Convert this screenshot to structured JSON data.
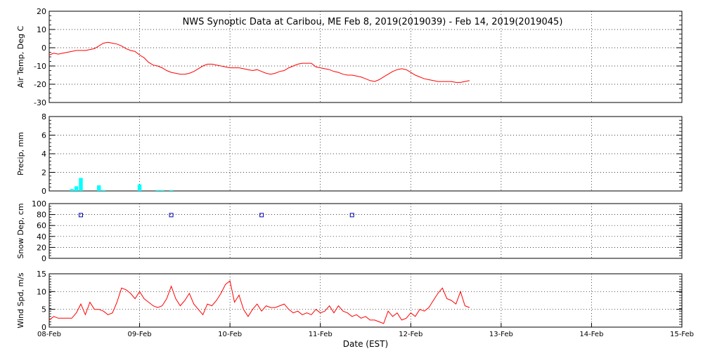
{
  "title": "NWS Synoptic Data at Caribou, ME   Feb  8, 2019(2019039) - Feb 14, 2019(2019045)",
  "x_axis": {
    "label": "Date (EST)",
    "range_days": [
      0,
      7
    ],
    "ticks": [
      "08-Feb",
      "09-Feb",
      "10-Feb",
      "11-Feb",
      "12-Feb",
      "13-Feb",
      "14-Feb",
      "15-Feb"
    ]
  },
  "colors": {
    "line": "#ff0000",
    "bar": "#00ffff",
    "marker": "#0000aa",
    "frame": "#000000",
    "grid": "#000000"
  },
  "chart_data": [
    {
      "type": "line",
      "id": "air-temp",
      "ylabel": "Air Temp, Deg C",
      "ylim": [
        -30,
        20
      ],
      "yticks": [
        "20",
        "10",
        "0",
        "-10",
        "-20",
        "-30"
      ],
      "grid": true,
      "x": [
        0,
        0.05,
        0.1,
        0.15,
        0.2,
        0.25,
        0.3,
        0.35,
        0.4,
        0.45,
        0.5,
        0.55,
        0.6,
        0.65,
        0.7,
        0.75,
        0.8,
        0.85,
        0.9,
        0.95,
        1.0,
        1.05,
        1.1,
        1.15,
        1.2,
        1.25,
        1.3,
        1.35,
        1.4,
        1.45,
        1.5,
        1.55,
        1.6,
        1.65,
        1.7,
        1.75,
        1.8,
        1.85,
        1.9,
        1.95,
        2.0,
        2.05,
        2.1,
        2.15,
        2.2,
        2.25,
        2.3,
        2.35,
        2.4,
        2.45,
        2.5,
        2.55,
        2.6,
        2.65,
        2.7,
        2.75,
        2.8,
        2.85,
        2.9,
        2.95,
        3.0,
        3.05,
        3.1,
        3.15,
        3.2,
        3.25,
        3.3,
        3.35,
        3.4,
        3.45,
        3.5,
        3.55,
        3.6,
        3.65,
        3.7,
        3.75,
        3.8,
        3.85,
        3.9,
        3.95,
        4.0,
        4.05,
        4.1,
        4.15,
        4.2,
        4.25,
        4.3,
        4.35,
        4.4,
        4.45,
        4.5,
        4.55,
        4.6,
        4.65
      ],
      "y": [
        -4,
        -3,
        -3.5,
        -3,
        -2.5,
        -2,
        -1.5,
        -1.5,
        -1.5,
        -1,
        -0.5,
        1,
        2.5,
        3,
        2.5,
        2,
        1,
        -0.5,
        -1.5,
        -2,
        -4,
        -5.5,
        -8,
        -9.5,
        -10,
        -11,
        -12.5,
        -13.5,
        -14,
        -14.5,
        -14.5,
        -14,
        -13,
        -11.5,
        -10,
        -9,
        -9,
        -9.5,
        -10,
        -10.5,
        -11,
        -11,
        -11,
        -11.5,
        -12,
        -12.5,
        -12,
        -13,
        -14,
        -14.5,
        -14,
        -13,
        -12.5,
        -11,
        -10,
        -9,
        -8.5,
        -8.5,
        -8.5,
        -10.5,
        -11,
        -11.5,
        -12,
        -13,
        -13.5,
        -14.5,
        -15,
        -15,
        -15.5,
        -16,
        -17,
        -18,
        -18.5,
        -17.5,
        -16,
        -14.5,
        -13,
        -12,
        -11.5,
        -12,
        -13.5,
        -15,
        -16,
        -17,
        -17.5,
        -18,
        -18.5,
        -18.5,
        -18.5,
        -18.5,
        -19,
        -19,
        -18.5,
        -18
      ]
    },
    {
      "type": "bar",
      "id": "precip",
      "ylabel": "Precip, mm",
      "ylim": [
        0,
        8
      ],
      "yticks": [
        "8",
        "6",
        "4",
        "2",
        "0"
      ],
      "grid": true,
      "x": [
        0.25,
        0.3,
        0.35,
        0.55,
        0.6,
        1.0,
        1.2,
        1.25,
        1.35
      ],
      "y": [
        0.2,
        0.5,
        1.4,
        0.6,
        0.1,
        0.7,
        0.1,
        0.1,
        0.1
      ]
    },
    {
      "type": "scatter",
      "id": "snow-depth",
      "ylabel": "Snow Dep, cm",
      "ylim": [
        0,
        100
      ],
      "yticks": [
        "100",
        "80",
        "60",
        "40",
        "20",
        "0"
      ],
      "grid": true,
      "x": [
        0.35,
        1.35,
        2.35,
        3.35
      ],
      "y": [
        79,
        79,
        79,
        79
      ]
    },
    {
      "type": "line",
      "id": "wind-speed",
      "ylabel": "Wind Spd, m/s",
      "ylim": [
        0,
        15
      ],
      "yticks": [
        "15",
        "10",
        "5",
        "0"
      ],
      "grid": true,
      "x": [
        0,
        0.05,
        0.1,
        0.15,
        0.2,
        0.25,
        0.3,
        0.35,
        0.4,
        0.45,
        0.5,
        0.55,
        0.6,
        0.65,
        0.7,
        0.75,
        0.8,
        0.85,
        0.9,
        0.95,
        1.0,
        1.05,
        1.1,
        1.15,
        1.2,
        1.25,
        1.3,
        1.35,
        1.4,
        1.45,
        1.5,
        1.55,
        1.6,
        1.65,
        1.7,
        1.75,
        1.8,
        1.85,
        1.9,
        1.95,
        2.0,
        2.05,
        2.1,
        2.15,
        2.2,
        2.25,
        2.3,
        2.35,
        2.4,
        2.45,
        2.5,
        2.55,
        2.6,
        2.65,
        2.7,
        2.75,
        2.8,
        2.85,
        2.9,
        2.95,
        3.0,
        3.05,
        3.1,
        3.15,
        3.2,
        3.25,
        3.3,
        3.35,
        3.4,
        3.45,
        3.5,
        3.55,
        3.6,
        3.65,
        3.7,
        3.75,
        3.8,
        3.85,
        3.9,
        3.95,
        4.0,
        4.05,
        4.1,
        4.15,
        4.2,
        4.25,
        4.3,
        4.35,
        4.4,
        4.45,
        4.5,
        4.55,
        4.6,
        4.65
      ],
      "y": [
        2,
        3,
        2.5,
        2.5,
        2.5,
        2.5,
        4,
        6.5,
        3.5,
        7,
        5,
        5,
        4.5,
        3.5,
        4,
        7,
        11,
        10.5,
        9.5,
        8,
        10,
        8,
        7,
        6,
        5.5,
        6,
        8,
        11.5,
        8,
        6,
        7.5,
        9.5,
        6.5,
        5,
        3.5,
        6.5,
        6,
        7.5,
        9.5,
        12,
        13,
        7,
        9,
        5,
        3,
        5,
        6.5,
        4.5,
        6,
        5.5,
        5.5,
        6,
        6.5,
        5,
        4,
        4.5,
        3.5,
        4,
        3.5,
        5,
        4,
        4.5,
        6,
        4,
        6,
        4.5,
        4,
        3,
        3.5,
        2.5,
        3,
        2,
        2,
        1.5,
        1,
        4.5,
        3,
        4,
        2,
        2.5,
        4,
        3,
        5,
        4.5,
        5.5,
        7.5,
        9.5,
        11,
        8,
        7.5,
        6.5,
        10,
        6,
        5.5
      ]
    }
  ]
}
